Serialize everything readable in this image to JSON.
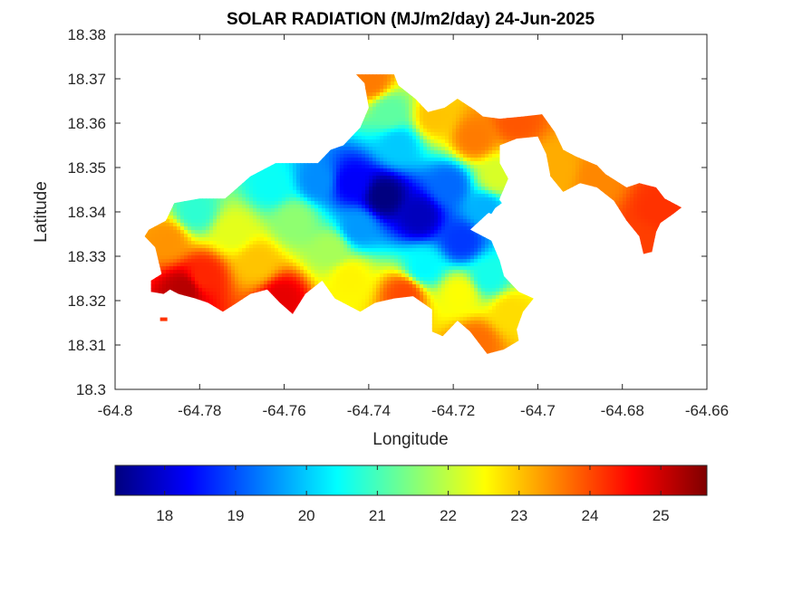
{
  "chart_data": {
    "type": "heatmap",
    "title": "SOLAR RADIATION (MJ/m2/day) 24-Jun-2025",
    "xlabel": "Longitude",
    "ylabel": "Latitude",
    "xlim": [
      -64.8,
      -64.66
    ],
    "ylim": [
      18.3,
      18.38
    ],
    "x_ticks": [
      "-64.8",
      "-64.78",
      "-64.76",
      "-64.74",
      "-64.72",
      "-64.7",
      "-64.68",
      "-64.66"
    ],
    "y_ticks": [
      "18.3",
      "18.31",
      "18.32",
      "18.33",
      "18.34",
      "18.35",
      "18.36",
      "18.37",
      "18.38"
    ],
    "grid": false,
    "colormap": "jet",
    "colorbar": {
      "orientation": "horizontal",
      "placement": "bottom",
      "range": [
        17.3,
        25.65
      ],
      "ticks": [
        "18",
        "19",
        "20",
        "21",
        "22",
        "23",
        "24",
        "25"
      ]
    },
    "field": {
      "outline_lonlat": [
        [
          -64.792,
          18.336
        ],
        [
          -64.788,
          18.338
        ],
        [
          -64.786,
          18.342
        ],
        [
          -64.78,
          18.343
        ],
        [
          -64.774,
          18.343
        ],
        [
          -64.768,
          18.348
        ],
        [
          -64.762,
          18.351
        ],
        [
          -64.752,
          18.351
        ],
        [
          -64.749,
          18.354
        ],
        [
          -64.746,
          18.355
        ],
        [
          -64.742,
          18.359
        ],
        [
          -64.74,
          18.3635
        ],
        [
          -64.741,
          18.369
        ],
        [
          -64.743,
          18.371
        ],
        [
          -64.734,
          18.371
        ],
        [
          -64.733,
          18.3685
        ],
        [
          -64.729,
          18.3655
        ],
        [
          -64.726,
          18.3625
        ],
        [
          -64.722,
          18.3635
        ],
        [
          -64.719,
          18.3655
        ],
        [
          -64.715,
          18.363
        ],
        [
          -64.713,
          18.3615
        ],
        [
          -64.709,
          18.361
        ],
        [
          -64.7035,
          18.3615
        ],
        [
          -64.699,
          18.362
        ],
        [
          -64.696,
          18.358
        ],
        [
          -64.694,
          18.354
        ],
        [
          -64.691,
          18.3525
        ],
        [
          -64.686,
          18.3505
        ],
        [
          -64.684,
          18.3485
        ],
        [
          -64.679,
          18.3455
        ],
        [
          -64.676,
          18.3465
        ],
        [
          -64.672,
          18.3455
        ],
        [
          -64.67,
          18.343
        ],
        [
          -64.667,
          18.3415
        ],
        [
          -64.666,
          18.341
        ],
        [
          -64.668,
          18.3395
        ],
        [
          -64.671,
          18.3375
        ],
        [
          -64.672,
          18.3355
        ],
        [
          -64.673,
          18.331
        ],
        [
          -64.675,
          18.3305
        ],
        [
          -64.676,
          18.3345
        ],
        [
          -64.679,
          18.338
        ],
        [
          -64.682,
          18.3425
        ],
        [
          -64.686,
          18.3455
        ],
        [
          -64.69,
          18.3465
        ],
        [
          -64.694,
          18.3445
        ],
        [
          -64.697,
          18.348
        ],
        [
          -64.698,
          18.353
        ],
        [
          -64.7,
          18.357
        ],
        [
          -64.705,
          18.3565
        ],
        [
          -64.709,
          18.355
        ],
        [
          -64.709,
          18.351
        ],
        [
          -64.707,
          18.3475
        ],
        [
          -64.709,
          18.343
        ],
        [
          -64.71,
          18.341
        ],
        [
          -64.711,
          18.3395
        ],
        [
          -64.715,
          18.3415
        ],
        [
          -64.717,
          18.3435
        ],
        [
          -64.718,
          18.347
        ],
        [
          -64.719,
          18.35
        ],
        [
          -64.716,
          18.3505
        ],
        [
          -64.7105,
          18.3445
        ],
        [
          -64.7085,
          18.342
        ],
        [
          -64.712,
          18.3395
        ],
        [
          -64.716,
          18.336
        ],
        [
          -64.711,
          18.3335
        ],
        [
          -64.709,
          18.329
        ],
        [
          -64.708,
          18.3255
        ],
        [
          -64.7045,
          18.322
        ],
        [
          -64.701,
          18.3205
        ],
        [
          -64.7035,
          18.3175
        ],
        [
          -64.705,
          18.3135
        ],
        [
          -64.7045,
          18.311
        ],
        [
          -64.708,
          18.309
        ],
        [
          -64.712,
          18.308
        ],
        [
          -64.716,
          18.313
        ],
        [
          -64.719,
          18.3155
        ],
        [
          -64.7225,
          18.312
        ],
        [
          -64.725,
          18.313
        ],
        [
          -64.725,
          18.318
        ],
        [
          -64.7295,
          18.321
        ],
        [
          -64.734,
          18.3205
        ],
        [
          -64.7385,
          18.3195
        ],
        [
          -64.742,
          18.3175
        ],
        [
          -64.748,
          18.3205
        ],
        [
          -64.751,
          18.3245
        ],
        [
          -64.755,
          18.3215
        ],
        [
          -64.758,
          18.317
        ],
        [
          -64.761,
          18.3195
        ],
        [
          -64.764,
          18.3225
        ],
        [
          -64.768,
          18.3215
        ],
        [
          -64.772,
          18.319
        ],
        [
          -64.7745,
          18.3175
        ],
        [
          -64.778,
          18.3195
        ],
        [
          -64.781,
          18.3205
        ],
        [
          -64.785,
          18.3215
        ],
        [
          -64.787,
          18.3225
        ],
        [
          -64.7885,
          18.3215
        ],
        [
          -64.7915,
          18.322
        ],
        [
          -64.7915,
          18.3245
        ],
        [
          -64.789,
          18.326
        ],
        [
          -64.7905,
          18.332
        ],
        [
          -64.793,
          18.3345
        ]
      ],
      "samples": [
        {
          "lon": -64.7365,
          "lat": 18.3435,
          "value": 17.3
        },
        {
          "lon": -64.728,
          "lat": 18.339,
          "value": 17.8
        },
        {
          "lon": -64.744,
          "lat": 18.3465,
          "value": 18.3
        },
        {
          "lon": -64.718,
          "lat": 18.3335,
          "value": 18.8
        },
        {
          "lon": -64.721,
          "lat": 18.346,
          "value": 19.2
        },
        {
          "lon": -64.752,
          "lat": 18.347,
          "value": 19.5
        },
        {
          "lon": -64.733,
          "lat": 18.355,
          "value": 20.0
        },
        {
          "lon": -64.7425,
          "lat": 18.3365,
          "value": 19.6
        },
        {
          "lon": -64.763,
          "lat": 18.346,
          "value": 20.5
        },
        {
          "lon": -64.781,
          "lat": 18.34,
          "value": 20.8
        },
        {
          "lon": -64.727,
          "lat": 18.3275,
          "value": 20.4
        },
        {
          "lon": -64.7115,
          "lat": 18.3255,
          "value": 20.6
        },
        {
          "lon": -64.735,
          "lat": 18.3625,
          "value": 21.2
        },
        {
          "lon": -64.7575,
          "lat": 18.338,
          "value": 21.6
        },
        {
          "lon": -64.749,
          "lat": 18.3315,
          "value": 21.8
        },
        {
          "lon": -64.772,
          "lat": 18.3355,
          "value": 22.3
        },
        {
          "lon": -64.7445,
          "lat": 18.325,
          "value": 22.6
        },
        {
          "lon": -64.7185,
          "lat": 18.3215,
          "value": 22.5
        },
        {
          "lon": -64.7065,
          "lat": 18.3175,
          "value": 22.8
        },
        {
          "lon": -64.7665,
          "lat": 18.3285,
          "value": 23.0
        },
        {
          "lon": -64.7875,
          "lat": 18.3335,
          "value": 23.4
        },
        {
          "lon": -64.7245,
          "lat": 18.3615,
          "value": 23.0
        },
        {
          "lon": -64.7395,
          "lat": 18.3695,
          "value": 23.6
        },
        {
          "lon": -64.715,
          "lat": 18.3565,
          "value": 23.6
        },
        {
          "lon": -64.705,
          "lat": 18.3605,
          "value": 23.9
        },
        {
          "lon": -64.7315,
          "lat": 18.3215,
          "value": 24.0
        },
        {
          "lon": -64.7145,
          "lat": 18.3105,
          "value": 23.7
        },
        {
          "lon": -64.779,
          "lat": 18.3255,
          "value": 24.3
        },
        {
          "lon": -64.7605,
          "lat": 18.3205,
          "value": 24.8
        },
        {
          "lon": -64.7835,
          "lat": 18.3225,
          "value": 25.2
        },
        {
          "lon": -64.6715,
          "lat": 18.3405,
          "value": 24.2
        },
        {
          "lon": -64.676,
          "lat": 18.3335,
          "value": 24.1
        },
        {
          "lon": -64.686,
          "lat": 18.3475,
          "value": 23.5
        },
        {
          "lon": -64.6955,
          "lat": 18.3495,
          "value": 23.2
        },
        {
          "lon": -64.7095,
          "lat": 18.348,
          "value": 22.2
        },
        {
          "lon": -64.7125,
          "lat": 18.3405,
          "value": 19.8
        }
      ],
      "islets": [
        {
          "lon": -64.7885,
          "lat": 18.3158,
          "value": 24.2
        }
      ]
    }
  }
}
